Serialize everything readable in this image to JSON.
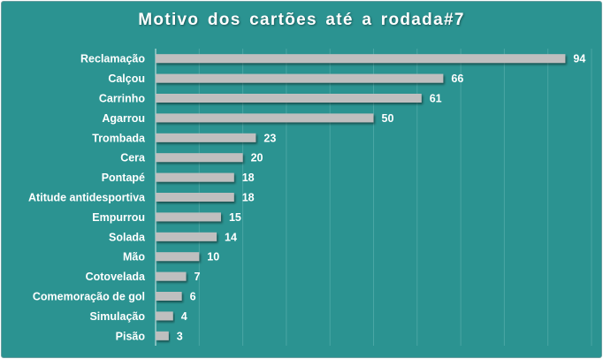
{
  "chart_data": {
    "type": "bar",
    "orientation": "horizontal",
    "title": "Motivo dos cartões até a rodada#7",
    "categories": [
      "Reclamação",
      "Calçou",
      "Carrinho",
      "Agarrou",
      "Trombada",
      "Cera",
      "Pontapé",
      "Atitude antidesportiva",
      "Empurrou",
      "Solada",
      "Mão",
      "Cotovelada",
      "Comemoração de gol",
      "Simulação",
      "Pisão"
    ],
    "values": [
      94,
      66,
      61,
      50,
      23,
      20,
      18,
      18,
      15,
      14,
      10,
      7,
      6,
      4,
      3
    ],
    "xlim": [
      0,
      100
    ],
    "grid_step": 10,
    "grid": true,
    "legend": "none",
    "colors": {
      "background": "#2b9391",
      "bar": "#bfbfbf",
      "grid": "#4aa6a4",
      "text": "#ffffff"
    }
  }
}
